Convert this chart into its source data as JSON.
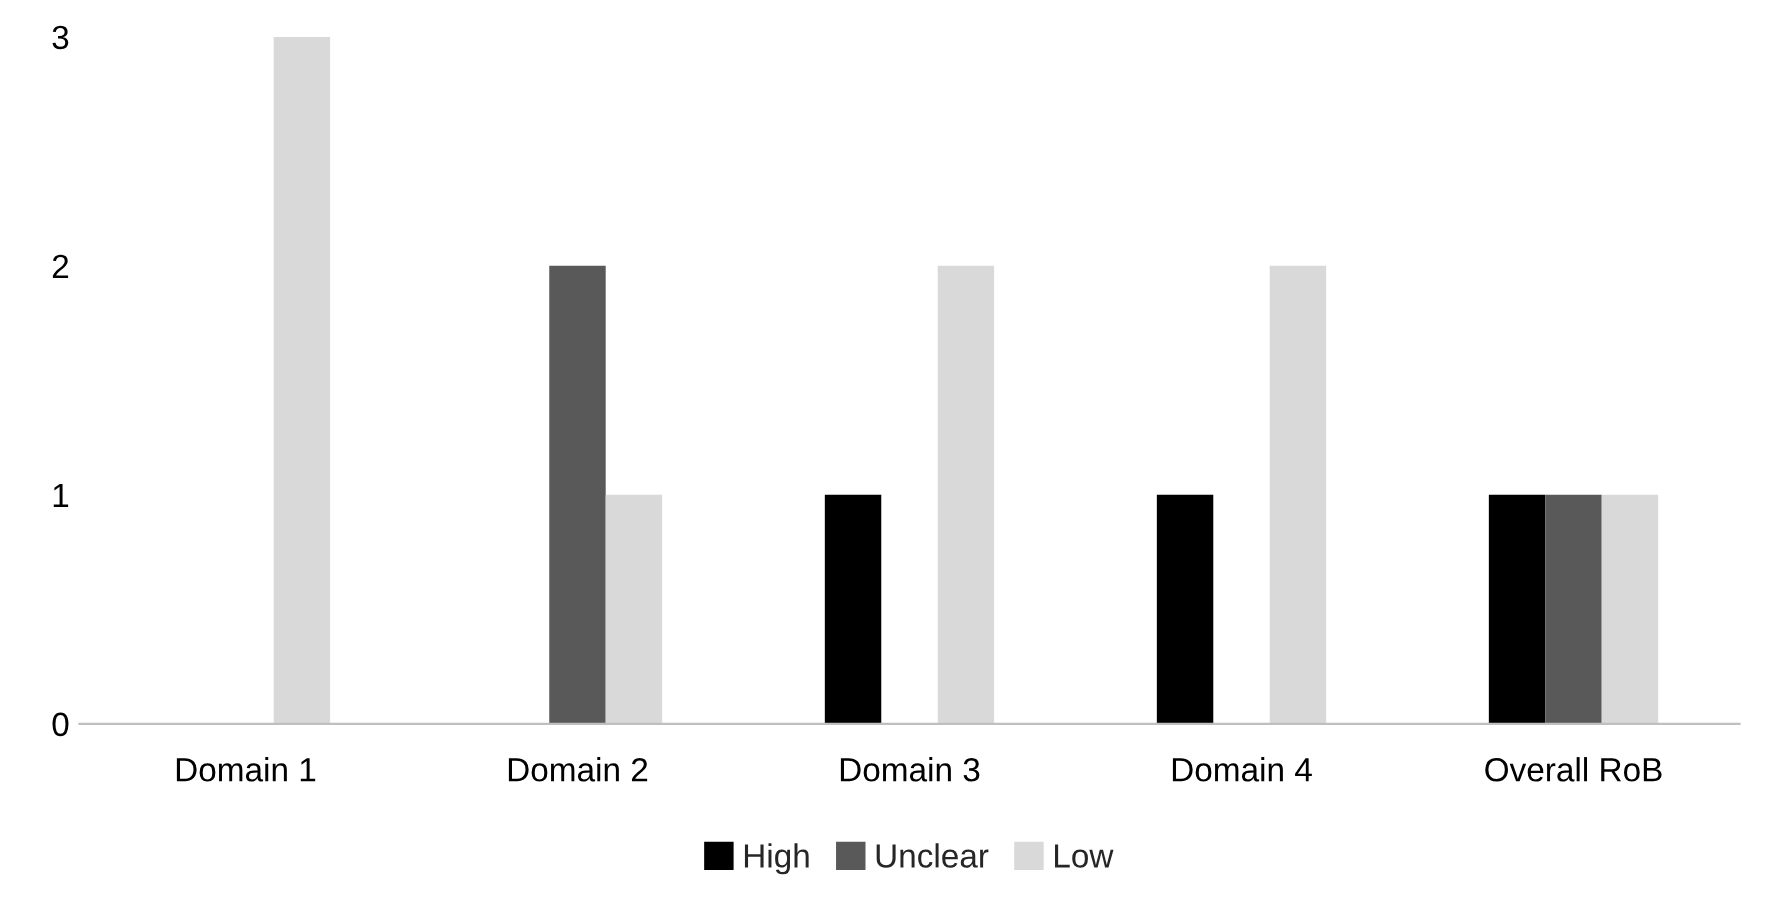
{
  "chart_data": {
    "type": "bar",
    "categories": [
      "Domain 1",
      "Domain 2",
      "Domain 3",
      "Domain 4",
      "Overall RoB"
    ],
    "series": [
      {
        "name": "High",
        "color": "#000000",
        "values": [
          0,
          0,
          1,
          1,
          1
        ]
      },
      {
        "name": "Unclear",
        "color": "#595959",
        "values": [
          0,
          2,
          0,
          0,
          1
        ]
      },
      {
        "name": "Low",
        "color": "#d9d9d9",
        "values": [
          3,
          1,
          2,
          2,
          1
        ]
      }
    ],
    "ylim": [
      0,
      3
    ],
    "yticks": [
      0,
      1,
      2,
      3
    ],
    "grid": false,
    "legend": "bottom"
  }
}
